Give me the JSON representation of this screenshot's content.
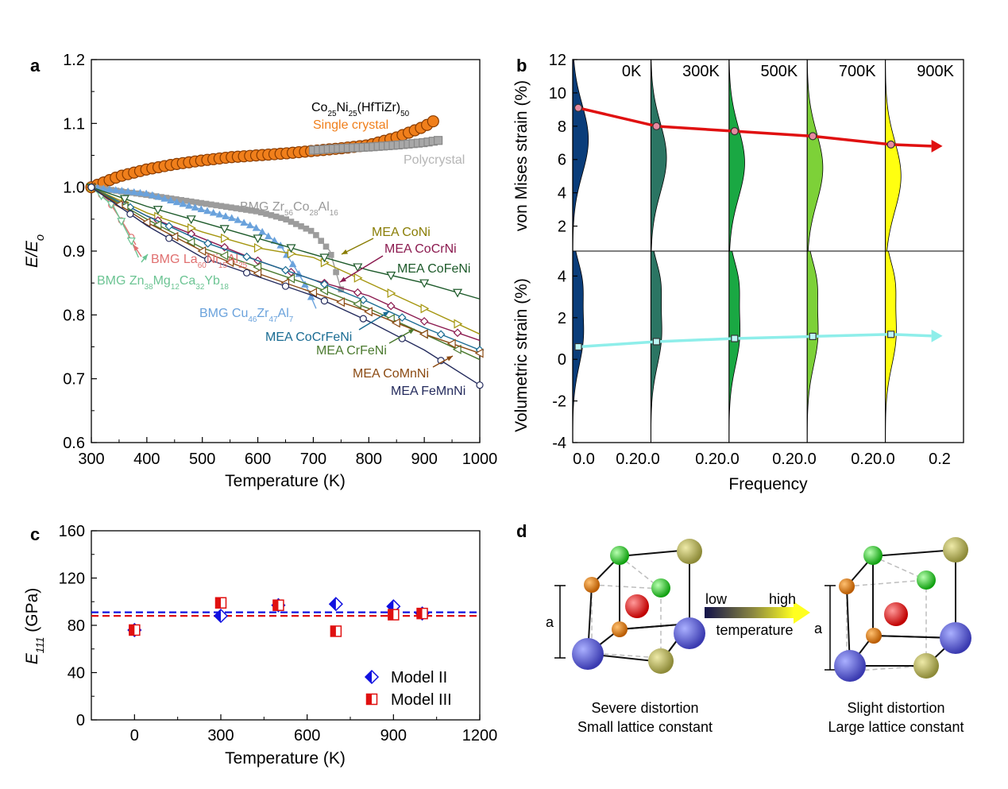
{
  "colors": {
    "sc": "#f07f1b",
    "poly": "#a8a8a8",
    "bmg_zr": "#9c9c9c",
    "bmg_la": "#e07070",
    "bmg_zn": "#6cc493",
    "bmg_cu": "#6aa2dc",
    "mea_coni": "#a5960f",
    "mea_cocrni": "#8b1a4f",
    "mea_cofeni": "#1d5a2a",
    "mea_cocrfeni": "#1a6c93",
    "mea_crfeni": "#4b7a2f",
    "mea_comnni": "#8b4a12",
    "mea_femnni": "#232a5c",
    "k0": "#0a3d7a",
    "k300": "#2b7563",
    "k500": "#1aa843",
    "k700": "#7dd138",
    "k900": "#ffff10",
    "vm_arrow": "#e01010",
    "vol_arrow": "#8eeeea",
    "model2": "#1010e0",
    "model3": "#e01010"
  },
  "panels": {
    "a": "a",
    "b": "b",
    "c": "c",
    "d": "d"
  },
  "chart_data": [
    {
      "panel": "a",
      "type": "line",
      "xlabel": "Temperature (K)",
      "ylabel": "E/Eo",
      "xlim": [
        300,
        1000
      ],
      "ylim": [
        0.6,
        1.2
      ],
      "xticks": [
        "300",
        "400",
        "500",
        "600",
        "700",
        "800",
        "900",
        "1000"
      ],
      "yticks": [
        "0.6",
        "0.7",
        "0.8",
        "0.9",
        "1.0",
        "1.1",
        "1.2"
      ],
      "series": [
        {
          "key": "sc",
          "name": "Single crystal",
          "x": [
            300,
            350,
            400,
            450,
            500,
            550,
            600,
            650,
            700,
            750,
            800,
            850,
            900,
            925
          ],
          "y": [
            1.0,
            1.017,
            1.028,
            1.036,
            1.042,
            1.047,
            1.05,
            1.053,
            1.057,
            1.061,
            1.066,
            1.078,
            1.095,
            1.108
          ]
        },
        {
          "key": "poly",
          "name": "Polycrystal",
          "x": [
            700,
            750,
            800,
            850,
            900,
            930
          ],
          "y": [
            1.058,
            1.061,
            1.063,
            1.066,
            1.07,
            1.074
          ]
        },
        {
          "key": "bmg_zr",
          "name": "BMG Zr56Co28Al16",
          "x": [
            300,
            400,
            500,
            600,
            650,
            700,
            730,
            750
          ],
          "y": [
            1.0,
            0.988,
            0.975,
            0.962,
            0.95,
            0.93,
            0.9,
            0.84
          ]
        },
        {
          "key": "bmg_la",
          "name": "BMG La60Ni15Al25",
          "x": [
            300,
            330,
            360,
            380
          ],
          "y": [
            1.0,
            0.98,
            0.94,
            0.91
          ]
        },
        {
          "key": "bmg_zn",
          "name": "BMG Zn38Mg12Ca32Yb18",
          "x": [
            300,
            340,
            370,
            385
          ],
          "y": [
            1.0,
            0.97,
            0.92,
            0.89
          ]
        },
        {
          "key": "bmg_cu",
          "name": "BMG Cu46Zr47Al7",
          "x": [
            300,
            400,
            500,
            560,
            600,
            640,
            670,
            690,
            705
          ],
          "y": [
            1.0,
            0.99,
            0.965,
            0.95,
            0.935,
            0.91,
            0.87,
            0.84,
            0.81
          ]
        },
        {
          "key": "mea_coni",
          "name": "MEA CoNi",
          "x": [
            300,
            400,
            500,
            600,
            700,
            800,
            900,
            1000
          ],
          "y": [
            1.0,
            0.96,
            0.93,
            0.905,
            0.89,
            0.85,
            0.81,
            0.77
          ]
        },
        {
          "key": "mea_cocrni",
          "name": "MEA CoCrNi",
          "x": [
            300,
            400,
            500,
            600,
            700,
            800,
            900,
            1000
          ],
          "y": [
            1.0,
            0.955,
            0.92,
            0.885,
            0.855,
            0.83,
            0.79,
            0.76
          ]
        },
        {
          "key": "mea_cofeni",
          "name": "MEA CoFeNi",
          "x": [
            300,
            400,
            500,
            600,
            700,
            800,
            900,
            1000
          ],
          "y": [
            1.0,
            0.97,
            0.945,
            0.92,
            0.895,
            0.87,
            0.85,
            0.825
          ]
        },
        {
          "key": "mea_cocrfeni",
          "name": "MEA CoCrFeNi",
          "x": [
            300,
            400,
            500,
            600,
            700,
            800,
            900,
            1000
          ],
          "y": [
            1.0,
            0.955,
            0.915,
            0.885,
            0.855,
            0.82,
            0.78,
            0.745
          ]
        },
        {
          "key": "mea_crfeni",
          "name": "MEA CrFeNi",
          "x": [
            300,
            400,
            500,
            600,
            700,
            800,
            900,
            1000
          ],
          "y": [
            1.0,
            0.95,
            0.905,
            0.875,
            0.845,
            0.81,
            0.77,
            0.73
          ]
        },
        {
          "key": "mea_comnni",
          "name": "MEA CoMnNi",
          "x": [
            300,
            400,
            500,
            600,
            700,
            800,
            900,
            1000
          ],
          "y": [
            1.0,
            0.945,
            0.9,
            0.865,
            0.835,
            0.805,
            0.77,
            0.74
          ]
        },
        {
          "key": "mea_femnni",
          "name": "MEA FeMnNi",
          "x": [
            300,
            400,
            500,
            600,
            700,
            800,
            900,
            1000
          ],
          "y": [
            1.0,
            0.94,
            0.89,
            0.86,
            0.83,
            0.79,
            0.745,
            0.69
          ]
        }
      ],
      "annotations": [
        {
          "text": "Co25Ni25(HfTiZr)50",
          "parts": [
            [
              "Co",
              ""
            ],
            [
              "25",
              "sub"
            ],
            [
              "Ni",
              ""
            ],
            [
              "25",
              "sub"
            ],
            [
              "(HfTiZr)",
              ""
            ],
            [
              "50",
              "sub"
            ]
          ]
        },
        {
          "text": "Single crystal"
        },
        {
          "text": "Polycrystal"
        },
        {
          "text": "BMG Zr56Co28Al16",
          "parts": [
            [
              "BMG Zr",
              ""
            ],
            [
              "56",
              "sub"
            ],
            [
              "Co",
              ""
            ],
            [
              "28",
              "sub"
            ],
            [
              "Al",
              ""
            ],
            [
              "16",
              "sub"
            ]
          ]
        },
        {
          "text": "MEA CoNi"
        },
        {
          "text": "MEA CoCrNi"
        },
        {
          "text": "MEA CoFeNi"
        },
        {
          "text": "BMG La60Ni15Al25",
          "parts": [
            [
              "BMG La",
              ""
            ],
            [
              "60",
              "sub"
            ],
            [
              "Ni",
              ""
            ],
            [
              "15",
              "sub"
            ],
            [
              "Al",
              ""
            ],
            [
              "25",
              "sub"
            ]
          ]
        },
        {
          "text": "BMG Zn38Mg12Ca32Yb18",
          "parts": [
            [
              "BMG Zn",
              ""
            ],
            [
              "38",
              "sub"
            ],
            [
              "Mg",
              ""
            ],
            [
              "12",
              "sub"
            ],
            [
              "Ca",
              ""
            ],
            [
              "32",
              "sub"
            ],
            [
              "Yb",
              ""
            ],
            [
              "18",
              "sub"
            ]
          ]
        },
        {
          "text": "BMG Cu46Zr47Al7",
          "parts": [
            [
              "BMG Cu",
              ""
            ],
            [
              "46",
              "sub"
            ],
            [
              "Zr",
              ""
            ],
            [
              "47",
              "sub"
            ],
            [
              "Al",
              ""
            ],
            [
              "7",
              "sub"
            ]
          ]
        },
        {
          "text": "MEA CoCrFeNi"
        },
        {
          "text": "MEA CrFeNi"
        },
        {
          "text": "MEA CoMnNi"
        },
        {
          "text": "MEA FeMnNi"
        }
      ]
    },
    {
      "panel": "b",
      "type": "area",
      "xlabel": "Frequency",
      "ylabel_top": "von Mises strain (%)",
      "ylabel_bottom": "Volumetric strain (%)",
      "xticks": [
        "0.0",
        "0.20.0",
        "0.20.0",
        "0.20.0",
        "0.20.0",
        "0.2"
      ],
      "yticks_top": [
        "2",
        "4",
        "6",
        "8",
        "10",
        "12"
      ],
      "yticks_bottom": [
        "-4",
        "-2",
        "0",
        "2",
        "4"
      ],
      "ylim_top": [
        0.5,
        12
      ],
      "ylim_bottom": [
        -4,
        5.2
      ],
      "temperatures": [
        {
          "label": "0K",
          "color_key": "k0",
          "vm_mean": 9.1,
          "vol_mean": 0.6
        },
        {
          "label": "300K",
          "color_key": "k300",
          "vm_mean": 8.0,
          "vol_mean": 0.85
        },
        {
          "label": "500K",
          "color_key": "k500",
          "vm_mean": 7.7,
          "vol_mean": 1.0
        },
        {
          "label": "700K",
          "color_key": "k700",
          "vm_mean": 7.4,
          "vol_mean": 1.1
        },
        {
          "label": "900K",
          "color_key": "k900",
          "vm_mean": 6.9,
          "vol_mean": 1.2
        }
      ]
    },
    {
      "panel": "c",
      "type": "scatter",
      "xlabel": "Temperature (K)",
      "ylabel": "E111 (GPa)",
      "ylabel_parts": [
        [
          "E",
          ""
        ],
        [
          "111",
          "sub"
        ],
        [
          " (GPa)",
          ""
        ]
      ],
      "xlim": [
        -150,
        1200
      ],
      "ylim": [
        0,
        160
      ],
      "xticks": [
        "0",
        "300",
        "600",
        "900",
        "1200"
      ],
      "yticks": [
        "0",
        "40",
        "80",
        "120",
        "160"
      ],
      "series": [
        {
          "key": "model2",
          "name": "Model II",
          "x": [
            0,
            300,
            500,
            700,
            900,
            1000
          ],
          "y": [
            76,
            88,
            97,
            98,
            96,
            90
          ],
          "mean_line": 91
        },
        {
          "key": "model3",
          "name": "Model III",
          "x": [
            0,
            300,
            500,
            700,
            900,
            1000
          ],
          "y": [
            76,
            99,
            97,
            75,
            89,
            90
          ],
          "mean_line": 88
        }
      ]
    },
    {
      "panel": "d",
      "type": "diagram",
      "lattice_label": "a",
      "gradient": {
        "low": "low",
        "high": "high",
        "label": "temperature"
      },
      "left_caption": [
        "Severe distortion",
        "Small lattice constant"
      ],
      "right_caption": [
        "Slight distortion",
        "Large lattice constant"
      ]
    }
  ]
}
